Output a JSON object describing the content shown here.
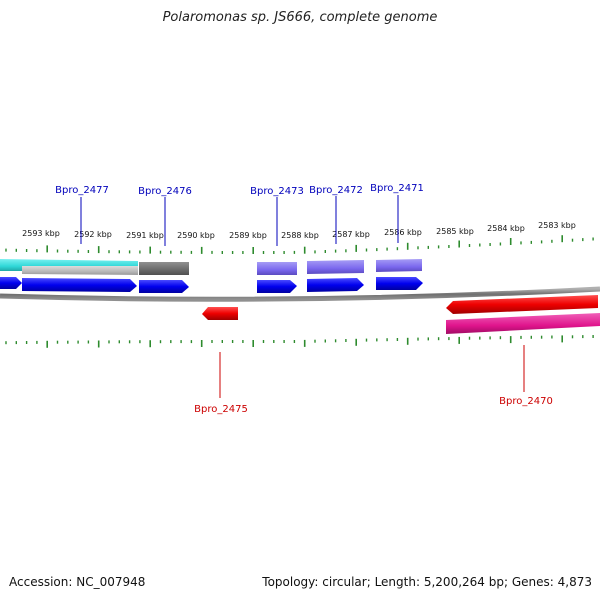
{
  "title": "Polaromonas sp. JS666, complete genome",
  "footer": {
    "accession_label": "Accession:",
    "accession": "NC_007948",
    "topology_label": "Topology:",
    "topology": "circular",
    "length_label": "Length:",
    "length": "5,200,264 bp",
    "genes_label": "Genes:",
    "genes": "4,873"
  },
  "ruler_labels": [
    "2593 kbp",
    "2592 kbp",
    "2591 kbp",
    "2590 kbp",
    "2589 kbp",
    "2588 kbp",
    "2587 kbp",
    "2586 kbp",
    "2585 kbp",
    "2584 kbp",
    "2583 kbp"
  ],
  "gene_labels_top": [
    "Bpro_2477",
    "Bpro_2476",
    "Bpro_2473",
    "Bpro_2472",
    "Bpro_2471"
  ],
  "gene_labels_bottom": [
    "Bpro_2475",
    "Bpro_2470"
  ],
  "colors": {
    "backbone": "#808080",
    "ticks": "#2e8b2e",
    "forward_cds": "#0000ee",
    "reverse_cds": "#ee0000",
    "top_label": "#0000bb",
    "bottom_label": "#cc0000",
    "cyan_feature": "#30d8d8",
    "gray_feature": "#707070",
    "lightgray_feature": "#b8b8b8",
    "purple_feature": "#7b68ee",
    "magenta_feature": "#e0148c"
  }
}
